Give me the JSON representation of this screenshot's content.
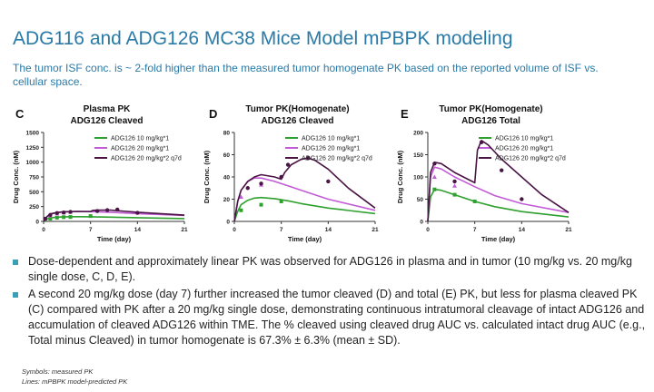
{
  "slide": {
    "title": "ADG116 and ADG126 MC38 Mice Model mPBPK modeling",
    "subtitle": "The tumor ISF conc. is ~ 2-fold higher than the measured tumor homogenate PK based on the reported volume of ISF vs. cellular space."
  },
  "colors": {
    "s10": "#2ea02e",
    "s20": "#c25bd6",
    "s20x2": "#4a1545",
    "title": "#2a7aa7",
    "bullet": "#3aa0b8"
  },
  "bullets": [
    "Dose-dependent and approximately linear PK was observed for ADG126 in plasma and in tumor (10 mg/kg vs. 20 mg/kg single dose, C, D, E).",
    "A second 20 mg/kg dose (day 7) further increased the tumor cleaved (D) and total (E) PK, but less for plasma cleaved PK (C) compared with PK after a 20 mg/kg single dose, demonstrating continuous intratumoral cleavage of intact ADG126 and accumulation of cleaved ADG126 within TME. The % cleaved using cleaved drug AUC vs. calculated intact drug AUC (e.g., Total minus Cleaved) in tumor homogenate is 67.3% ± 6.3% (mean ± SD)."
  ],
  "footnotes": [
    "Symbols: measured PK",
    "Lines: mPBPK model-predicted PK"
  ],
  "chart_data": [
    {
      "panel": "C",
      "type": "line",
      "title": [
        "Plasma PK",
        "ADG126 Cleaved"
      ],
      "xlabel": "Time (day)",
      "ylabel": "Drug Conc. (nM)",
      "xlim": [
        0,
        21
      ],
      "ylim": [
        0,
        1500
      ],
      "xticks": [
        0,
        7,
        14,
        21
      ],
      "yticks": [
        0,
        250,
        500,
        750,
        1000,
        1250,
        1500
      ],
      "ytick_labels": [
        "0",
        "250",
        "500",
        "750",
        "1000",
        "1250",
        "1500"
      ],
      "legend": "top-right",
      "series": [
        {
          "name": "ADG126 10 mg/kg*1",
          "color": "#2ea02e",
          "marker": "square",
          "line": [
            [
              0,
              0
            ],
            [
              0.5,
              40
            ],
            [
              1,
              60
            ],
            [
              2,
              72
            ],
            [
              3,
              78
            ],
            [
              5,
              80
            ],
            [
              7,
              78
            ],
            [
              10,
              72
            ],
            [
              14,
              62
            ],
            [
              21,
              48
            ]
          ],
          "points": [
            [
              0.25,
              20
            ],
            [
              1,
              45
            ],
            [
              2,
              62
            ],
            [
              3,
              72
            ],
            [
              4,
              75
            ],
            [
              7,
              90
            ]
          ]
        },
        {
          "name": "ADG126 20 mg/kg*1",
          "color": "#c25bd6",
          "marker": "triangle",
          "line": [
            [
              0,
              0
            ],
            [
              0.5,
              80
            ],
            [
              1,
              125
            ],
            [
              2,
              150
            ],
            [
              3,
              162
            ],
            [
              5,
              168
            ],
            [
              7,
              166
            ],
            [
              10,
              155
            ],
            [
              14,
              132
            ],
            [
              21,
              100
            ]
          ],
          "points": [
            [
              0.25,
              40
            ],
            [
              1,
              100
            ],
            [
              2,
              130
            ],
            [
              3,
              150
            ],
            [
              4,
              160
            ]
          ]
        },
        {
          "name": "ADG126 20 mg/kg*2 q7d",
          "color": "#4a1545",
          "marker": "circle",
          "line": [
            [
              0,
              0
            ],
            [
              0.5,
              80
            ],
            [
              1,
              125
            ],
            [
              2,
              150
            ],
            [
              3,
              162
            ],
            [
              5,
              168
            ],
            [
              7,
              166
            ],
            [
              7.3,
              185
            ],
            [
              8,
              192
            ],
            [
              10,
              190
            ],
            [
              14,
              155
            ],
            [
              21,
              105
            ]
          ],
          "points": [
            [
              0.25,
              45
            ],
            [
              1,
              110
            ],
            [
              2,
              140
            ],
            [
              3,
              150
            ],
            [
              4,
              160
            ],
            [
              8,
              175
            ],
            [
              9.5,
              190
            ],
            [
              11,
              200
            ],
            [
              14,
              145
            ]
          ]
        }
      ]
    },
    {
      "panel": "D",
      "type": "line",
      "title": [
        "Tumor PK(Homogenate)",
        "ADG126 Cleaved"
      ],
      "xlabel": "Time (day)",
      "ylabel": "Drug Conc. (nM)",
      "xlim": [
        0,
        21
      ],
      "ylim": [
        0,
        80
      ],
      "xticks": [
        0,
        7,
        14,
        21
      ],
      "yticks": [
        0,
        20,
        40,
        60,
        80
      ],
      "ytick_labels": [
        "0",
        "20",
        "40",
        "60",
        "80"
      ],
      "legend": "top-right",
      "series": [
        {
          "name": "ADG126 10 mg/kg*1",
          "color": "#2ea02e",
          "marker": "square",
          "line": [
            [
              0,
              0
            ],
            [
              0.5,
              9
            ],
            [
              1,
              15
            ],
            [
              2,
              19
            ],
            [
              3,
              21
            ],
            [
              4,
              21.5
            ],
            [
              6,
              20.5
            ],
            [
              8,
              18.5
            ],
            [
              10,
              16
            ],
            [
              14,
              12
            ],
            [
              21,
              7
            ]
          ],
          "points": [
            [
              1,
              10
            ],
            [
              4,
              15
            ],
            [
              7,
              18
            ]
          ]
        },
        {
          "name": "ADG126 20 mg/kg*1",
          "color": "#c25bd6",
          "marker": "triangle",
          "line": [
            [
              0,
              0
            ],
            [
              0.5,
              18
            ],
            [
              1,
              28
            ],
            [
              2,
              36
            ],
            [
              3,
              39
            ],
            [
              4,
              39
            ],
            [
              6,
              36
            ],
            [
              8,
              32
            ],
            [
              10,
              28
            ],
            [
              14,
              20
            ],
            [
              21,
              10
            ]
          ],
          "points": [
            [
              1,
              22
            ],
            [
              4,
              33
            ]
          ]
        },
        {
          "name": "ADG126 20 mg/kg*2 q7d",
          "color": "#4a1545",
          "marker": "circle",
          "line": [
            [
              0,
              0
            ],
            [
              0.5,
              18
            ],
            [
              1,
              28
            ],
            [
              2,
              36
            ],
            [
              3,
              40
            ],
            [
              4,
              42
            ],
            [
              6,
              40
            ],
            [
              7,
              38
            ],
            [
              7.5,
              44
            ],
            [
              8.5,
              51
            ],
            [
              10,
              56
            ],
            [
              11,
              57
            ],
            [
              12,
              55
            ],
            [
              14,
              47
            ],
            [
              17,
              30
            ],
            [
              21,
              12
            ]
          ],
          "points": [
            [
              2,
              30
            ],
            [
              4,
              34
            ],
            [
              7,
              40
            ],
            [
              8,
              51
            ],
            [
              11,
              57
            ],
            [
              14,
              36
            ]
          ]
        }
      ]
    },
    {
      "panel": "E",
      "type": "line",
      "title": [
        "Tumor PK(Homogenate)",
        "ADG126 Total"
      ],
      "xlabel": "Time (day)",
      "ylabel": "Drug Conc. (nM)",
      "xlim": [
        0,
        21
      ],
      "ylim": [
        0,
        200
      ],
      "xticks": [
        0,
        7,
        14,
        21
      ],
      "yticks": [
        0,
        50,
        100,
        150,
        200
      ],
      "ytick_labels": [
        "0",
        "50",
        "100",
        "150",
        "200"
      ],
      "legend": "top-right",
      "series": [
        {
          "name": "ADG126 10 mg/kg*1",
          "color": "#2ea02e",
          "marker": "square",
          "line": [
            [
              0,
              0
            ],
            [
              0.4,
              55
            ],
            [
              1,
              72
            ],
            [
              2,
              70
            ],
            [
              4,
              60
            ],
            [
              7,
              45
            ],
            [
              10,
              33
            ],
            [
              14,
              22
            ],
            [
              21,
              10
            ]
          ],
          "points": [
            [
              1,
              72
            ],
            [
              4,
              60
            ],
            [
              7,
              45
            ]
          ]
        },
        {
          "name": "ADG126 20 mg/kg*1",
          "color": "#c25bd6",
          "marker": "triangle",
          "line": [
            [
              0,
              0
            ],
            [
              0.4,
              100
            ],
            [
              1,
              122
            ],
            [
              2,
              118
            ],
            [
              4,
              100
            ],
            [
              7,
              78
            ],
            [
              10,
              58
            ],
            [
              14,
              40
            ],
            [
              21,
              20
            ]
          ],
          "points": [
            [
              1,
              100
            ],
            [
              4,
              80
            ]
          ]
        },
        {
          "name": "ADG126 20 mg/kg*2 q7d",
          "color": "#4a1545",
          "marker": "circle",
          "line": [
            [
              0,
              0
            ],
            [
              0.4,
              110
            ],
            [
              1,
              133
            ],
            [
              2,
              130
            ],
            [
              4,
              110
            ],
            [
              7,
              87
            ],
            [
              7.4,
              160
            ],
            [
              8,
              182
            ],
            [
              9,
              172
            ],
            [
              11,
              140
            ],
            [
              14,
              100
            ],
            [
              17,
              60
            ],
            [
              21,
              20
            ]
          ],
          "points": [
            [
              1,
              130
            ],
            [
              4,
              90
            ],
            [
              8,
              178
            ],
            [
              11,
              115
            ],
            [
              14,
              50
            ]
          ]
        }
      ]
    }
  ]
}
